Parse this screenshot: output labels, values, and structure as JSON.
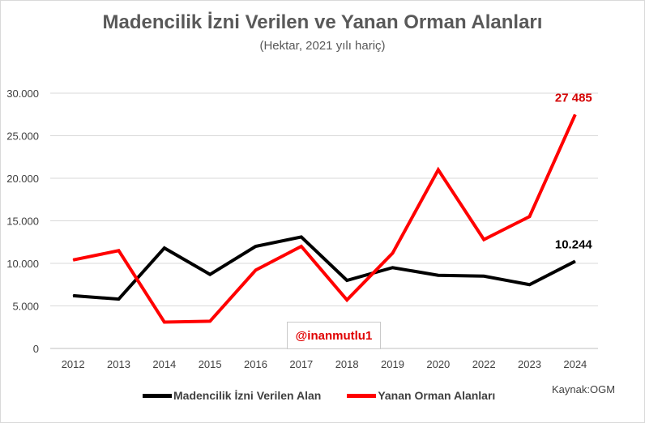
{
  "chart_data": {
    "type": "line",
    "title": "Madencilik İzni Verilen ve Yanan Orman Alanları",
    "subtitle": "(Hektar, 2021 yılı hariç)",
    "categories": [
      "2012",
      "2013",
      "2014",
      "2015",
      "2016",
      "2017",
      "2018",
      "2019",
      "2020",
      "2022",
      "2023",
      "2024"
    ],
    "ylim": [
      0,
      30000
    ],
    "yticks": [
      0,
      5000,
      10000,
      15000,
      20000,
      25000,
      30000
    ],
    "ytick_labels": [
      "0",
      "5.000",
      "10.000",
      "15.000",
      "20.000",
      "25.000",
      "30.000"
    ],
    "grid": true,
    "legend_position": "bottom",
    "series": [
      {
        "name": "Madencilik İzni Verilen Alan",
        "color": "#000000",
        "values": [
          6200,
          5800,
          11800,
          8700,
          12000,
          13100,
          8000,
          9500,
          8600,
          8500,
          7500,
          10244
        ],
        "end_label": "10.244"
      },
      {
        "name": "Yanan Orman Alanları",
        "color": "#ff0000",
        "values": [
          10400,
          11500,
          3100,
          3200,
          9200,
          12000,
          5700,
          11200,
          21000,
          12800,
          15500,
          27485
        ],
        "end_label": "27 485"
      }
    ],
    "source": "Kaynak:OGM",
    "watermark": "@inanmutlu1"
  }
}
